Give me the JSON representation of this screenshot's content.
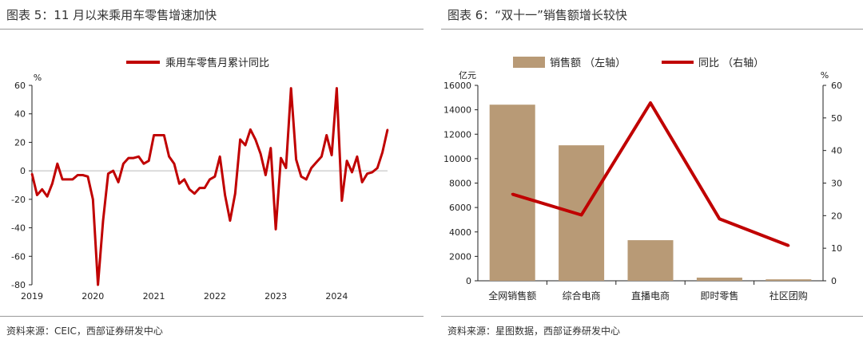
{
  "left": {
    "title": "图表 5：11 月以来乘用车零售增速加快",
    "source": "资料来源：CEIC，西部证券研发中心",
    "chart_data": {
      "type": "line",
      "title": "图表 5：11 月以来乘用车零售增速加快",
      "ylabel": "%",
      "ylim": [
        -80,
        60
      ],
      "yticks": [
        -80,
        -60,
        -40,
        -20,
        0,
        20,
        40,
        60
      ],
      "xticks": [
        "2019",
        "2020",
        "2021",
        "2022",
        "2023",
        "2024"
      ],
      "legend": "top",
      "series": [
        {
          "name": "乘用车零售月累计同比",
          "color": "#c00000",
          "values": [
            -2,
            -17,
            -13,
            -18,
            -9,
            5,
            -6,
            -6,
            -6,
            -3,
            -3,
            -4,
            -20,
            -80,
            -35,
            -2,
            0,
            -8,
            5,
            9,
            9,
            10,
            5,
            7,
            25,
            25,
            25,
            10,
            5,
            -9,
            -6,
            -13,
            -16,
            -12,
            -12,
            -6,
            -4,
            10,
            -17,
            -35,
            -16,
            22,
            18,
            29,
            22,
            12,
            -3,
            16,
            -41,
            9,
            2,
            58,
            8,
            -4,
            -6,
            2,
            6,
            10,
            25,
            11,
            58,
            -21,
            7,
            -1,
            10,
            -8,
            -2,
            -1,
            2,
            13,
            29
          ]
        }
      ]
    }
  },
  "right": {
    "title": "图表 6：“双十一”销售额增长较快",
    "source": "资料来源：星图数据，西部证券研发中心",
    "chart_data": {
      "type": "bar",
      "title": "图表 6：“双十一”销售额增长较快",
      "categories": [
        "全网销售额",
        "综合电商",
        "直播电商",
        "即时零售",
        "社区团购"
      ],
      "legend": "top",
      "left_axis": {
        "unit": "亿元",
        "ylim": [
          0,
          16000
        ],
        "ticks": [
          0,
          2000,
          4000,
          6000,
          8000,
          10000,
          12000,
          14000,
          16000
        ]
      },
      "right_axis": {
        "unit": "%",
        "ylim": [
          0,
          60
        ],
        "ticks": [
          0,
          10,
          20,
          30,
          40,
          50,
          60
        ]
      },
      "series": [
        {
          "name": "销售额 （左轴）",
          "type": "bar",
          "axis": "left",
          "color": "#b89a76",
          "values": [
            14418,
            11093,
            3325,
            260,
            120
          ]
        },
        {
          "name": "同比 （右轴）",
          "type": "line",
          "axis": "right",
          "color": "#c00000",
          "values": [
            26.6,
            20.2,
            54.6,
            19.0,
            10.8
          ]
        }
      ]
    }
  }
}
